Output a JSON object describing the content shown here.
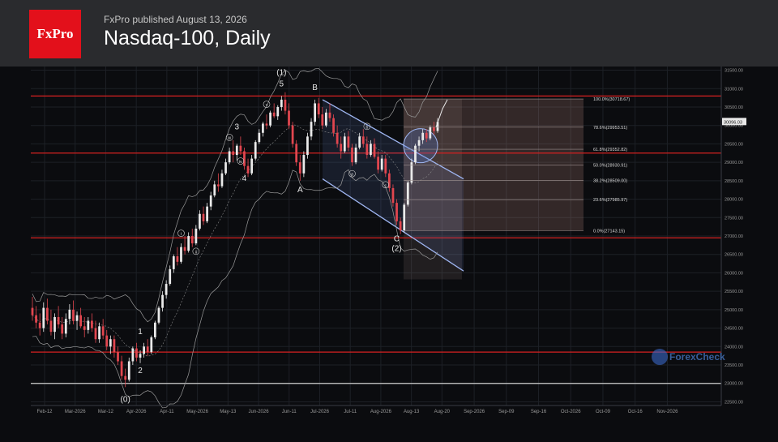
{
  "header": {
    "logo": "FxPro",
    "published": "FxPro published August 13, 2026",
    "title": "Nasdaq-100, Daily"
  },
  "watermark": "ForexCheck",
  "colors": {
    "up": "#eaeaea",
    "down": "#e2464f",
    "hline": "#d62020",
    "white_line": "#cfcfcf",
    "channel": "#9fb6f2",
    "fib_box": "#c38b86"
  },
  "chart_data": {
    "type": "candlestick",
    "title": "Nasdaq-100, Daily",
    "ylim": [
      22400,
      31600
    ],
    "y_ticks": [
      "31500.00",
      "31000.00",
      "30500.00",
      "30000.00",
      "29500.00",
      "29000.00",
      "28500.00",
      "28000.00",
      "27500.00",
      "27000.00",
      "26500.00",
      "26000.00",
      "25500.00",
      "25000.00",
      "24500.00",
      "24000.00",
      "23500.00",
      "23000.00",
      "22500.00"
    ],
    "x_ticks": [
      "Feb-12",
      "Mar-2026",
      "Mar-12",
      "Apr-2026",
      "Apr-11",
      "May-2026",
      "May-13",
      "Jun-2026",
      "Jun-11",
      "Jul-2026",
      "Jul-11",
      "Aug-2026",
      "Aug-13",
      "Aug-20",
      "Sep-2026",
      "Sep-09",
      "Sep-16",
      "Oct-2026",
      "Oct-09",
      "Oct-16",
      "Nov-2026"
    ],
    "current_price": "30096.03",
    "horizontal_levels": [
      {
        "value": 30800,
        "style": "red"
      },
      {
        "value": 29250,
        "style": "red"
      },
      {
        "value": 26950,
        "style": "red"
      },
      {
        "value": 23850,
        "style": "red"
      },
      {
        "value": 23000,
        "style": "white"
      }
    ],
    "fibonacci": [
      {
        "label": "100.0%(30718.67)",
        "value": 30718.67
      },
      {
        "label": "78.6%(29953.51)",
        "value": 29953.51
      },
      {
        "label": "61.8%(29352.82)",
        "value": 29352.82
      },
      {
        "label": "50.0%(28930.91)",
        "value": 28930.91
      },
      {
        "label": "38.2%(28509.00)",
        "value": 28509.0
      },
      {
        "label": "23.6%(27985.97)",
        "value": 27985.97
      },
      {
        "label": "0.0%(27143.15)",
        "value": 27143.15
      }
    ],
    "wave_labels": [
      "(0)",
      "1",
      "2",
      "3",
      "4",
      "5",
      "(1)",
      "A",
      "B",
      "C",
      "(2)",
      "i",
      "ii",
      "iii",
      "iv",
      "v",
      "a",
      "b",
      "c"
    ],
    "series": [
      {
        "type": "candlestick",
        "ohlc": [
          [
            25050,
            25350,
            24700,
            24850
          ],
          [
            24850,
            25100,
            24500,
            24650
          ],
          [
            24650,
            24900,
            24300,
            24500
          ],
          [
            24500,
            25200,
            24400,
            25050
          ],
          [
            25050,
            25300,
            24600,
            24700
          ],
          [
            24700,
            25000,
            24300,
            24400
          ],
          [
            24400,
            24900,
            24200,
            24800
          ],
          [
            24800,
            25100,
            24500,
            24600
          ],
          [
            24600,
            24800,
            24200,
            24350
          ],
          [
            24350,
            24900,
            24250,
            24750
          ],
          [
            24750,
            25150,
            24600,
            25000
          ],
          [
            25000,
            25250,
            24600,
            24700
          ],
          [
            24700,
            24950,
            24450,
            24850
          ],
          [
            24850,
            25050,
            24500,
            24550
          ],
          [
            24550,
            24800,
            24250,
            24450
          ],
          [
            24450,
            24800,
            24350,
            24700
          ],
          [
            24700,
            24900,
            24400,
            24500
          ],
          [
            24500,
            24700,
            24100,
            24200
          ],
          [
            24200,
            24650,
            24100,
            24550
          ],
          [
            24550,
            24750,
            24200,
            24300
          ],
          [
            24300,
            24450,
            23900,
            24000
          ],
          [
            24000,
            24300,
            23800,
            24200
          ],
          [
            24200,
            24300,
            23700,
            23850
          ],
          [
            23850,
            24000,
            23500,
            23600
          ],
          [
            23600,
            23750,
            23100,
            23200
          ],
          [
            23200,
            23400,
            22900,
            23100
          ],
          [
            23100,
            23700,
            23050,
            23600
          ],
          [
            23600,
            24000,
            23500,
            23950
          ],
          [
            23950,
            24100,
            23600,
            23700
          ],
          [
            23700,
            23900,
            23550,
            23800
          ],
          [
            23800,
            24100,
            23700,
            24000
          ],
          [
            24000,
            24200,
            23750,
            23850
          ],
          [
            23850,
            24300,
            23800,
            24250
          ],
          [
            24250,
            24700,
            24200,
            24650
          ],
          [
            24650,
            25100,
            24600,
            25050
          ],
          [
            25050,
            25500,
            24950,
            25400
          ],
          [
            25400,
            25800,
            25300,
            25700
          ],
          [
            25700,
            26200,
            25650,
            26100
          ],
          [
            26100,
            26500,
            26000,
            26450
          ],
          [
            26450,
            26700,
            26200,
            26300
          ],
          [
            26300,
            26800,
            26250,
            26700
          ],
          [
            26700,
            27000,
            26500,
            26600
          ],
          [
            26600,
            27100,
            26550,
            27000
          ],
          [
            27000,
            27200,
            26700,
            26800
          ],
          [
            26800,
            27300,
            26750,
            27200
          ],
          [
            27200,
            27700,
            27150,
            27600
          ],
          [
            27600,
            27800,
            27300,
            27400
          ],
          [
            27400,
            27900,
            27350,
            27800
          ],
          [
            27800,
            28200,
            27700,
            28100
          ],
          [
            28100,
            28500,
            28050,
            28400
          ],
          [
            28400,
            28700,
            28200,
            28350
          ],
          [
            28350,
            28800,
            28300,
            28700
          ],
          [
            28700,
            29100,
            28650,
            29000
          ],
          [
            29000,
            29400,
            28950,
            29300
          ],
          [
            29300,
            29600,
            29000,
            29200
          ],
          [
            29200,
            29500,
            29050,
            29450
          ],
          [
            29450,
            29700,
            29200,
            29300
          ],
          [
            29300,
            29400,
            28800,
            28900
          ],
          [
            28900,
            29100,
            28600,
            28700
          ],
          [
            28700,
            29200,
            28650,
            29100
          ],
          [
            29100,
            29600,
            29050,
            29550
          ],
          [
            29550,
            29900,
            29500,
            29800
          ],
          [
            29800,
            30100,
            29700,
            30050
          ],
          [
            30050,
            30300,
            29900,
            30000
          ],
          [
            30000,
            30400,
            29950,
            30350
          ],
          [
            30350,
            30600,
            30200,
            30250
          ],
          [
            30250,
            30550,
            30150,
            30500
          ],
          [
            30500,
            30800,
            30400,
            30700
          ],
          [
            30700,
            30900,
            30300,
            30400
          ],
          [
            30400,
            30600,
            29900,
            30000
          ],
          [
            30000,
            30100,
            29400,
            29500
          ],
          [
            29500,
            29600,
            28900,
            29000
          ],
          [
            29000,
            29200,
            28500,
            28700
          ],
          [
            28700,
            29300,
            28600,
            29200
          ],
          [
            29200,
            29800,
            29100,
            29700
          ],
          [
            29700,
            30200,
            29600,
            30100
          ],
          [
            30100,
            30700,
            30000,
            30600
          ],
          [
            30600,
            30750,
            30200,
            30300
          ],
          [
            30300,
            30500,
            29900,
            30000
          ],
          [
            30000,
            30450,
            29950,
            30350
          ],
          [
            30350,
            30600,
            30100,
            30200
          ],
          [
            30200,
            30300,
            29700,
            29800
          ],
          [
            29800,
            30000,
            29400,
            29500
          ],
          [
            29500,
            29700,
            29100,
            29300
          ],
          [
            29300,
            29800,
            29250,
            29700
          ],
          [
            29700,
            29850,
            29300,
            29400
          ],
          [
            29400,
            29500,
            28900,
            29000
          ],
          [
            29000,
            29500,
            28950,
            29400
          ],
          [
            29400,
            29800,
            29350,
            29700
          ],
          [
            29700,
            29900,
            29400,
            29500
          ],
          [
            29500,
            29700,
            29100,
            29200
          ],
          [
            29200,
            29600,
            29150,
            29500
          ],
          [
            29500,
            29650,
            29100,
            29150
          ],
          [
            29150,
            29300,
            28700,
            28800
          ],
          [
            28800,
            29200,
            28750,
            29100
          ],
          [
            29100,
            29200,
            28600,
            28700
          ],
          [
            28700,
            28800,
            28200,
            28300
          ],
          [
            28300,
            28400,
            27800,
            27900
          ],
          [
            27900,
            28000,
            27300,
            27400
          ],
          [
            27400,
            27500,
            27050,
            27150
          ],
          [
            27150,
            27900,
            27100,
            27850
          ],
          [
            27850,
            28500,
            27800,
            28450
          ],
          [
            28450,
            29100,
            28400,
            29000
          ],
          [
            29000,
            29500,
            28950,
            29450
          ],
          [
            29450,
            29700,
            29300,
            29600
          ],
          [
            29600,
            29900,
            29500,
            29800
          ],
          [
            29800,
            29900,
            29550,
            29650
          ],
          [
            29650,
            30000,
            29600,
            29950
          ],
          [
            29950,
            30100,
            29750,
            29850
          ],
          [
            29850,
            30200,
            29800,
            30096
          ]
        ]
      }
    ]
  }
}
